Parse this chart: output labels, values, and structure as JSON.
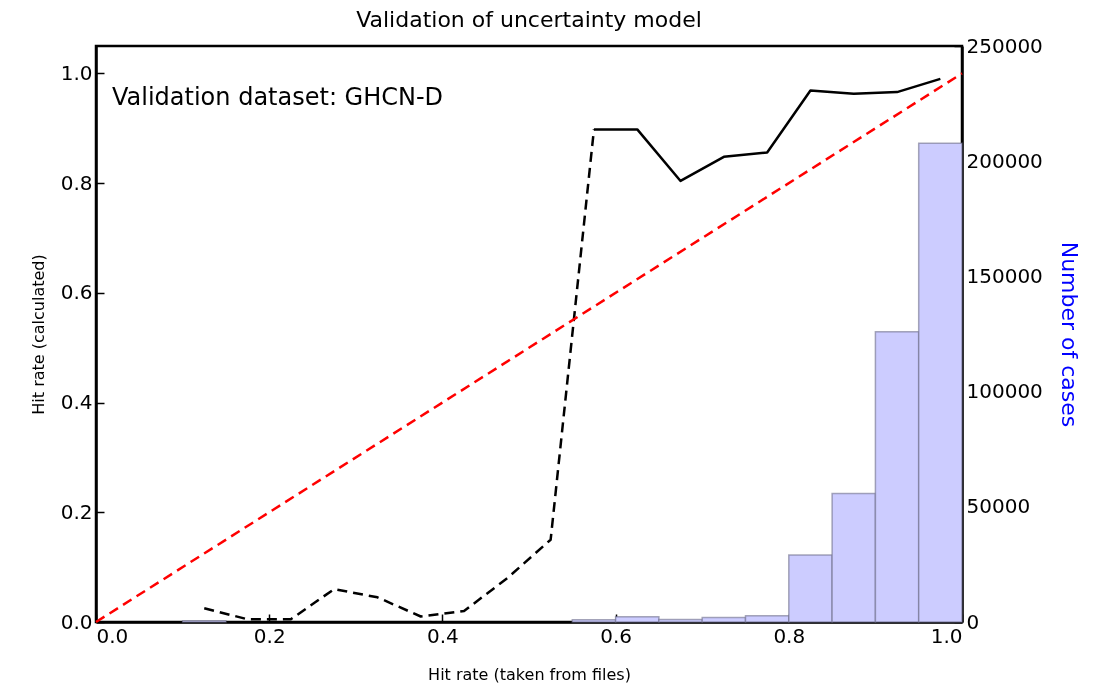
{
  "chart_data": {
    "type": "line",
    "title": "Validation of uncertainty model",
    "xlabel": "Hit rate (taken from files)",
    "ylabel": "Hit rate (calculated)",
    "y2label": "Number of cases",
    "annotations": [
      "Validation dataset: GHCN-D"
    ],
    "xlim": [
      0,
      1
    ],
    "ylim": [
      0,
      1.05
    ],
    "y2lim": [
      0,
      250000
    ],
    "xticks": [
      {
        "value": 0,
        "label": "0.0"
      },
      {
        "value": 0.2,
        "label": "0.2"
      },
      {
        "value": 0.4,
        "label": "0.4"
      },
      {
        "value": 0.6,
        "label": "0.6"
      },
      {
        "value": 0.8,
        "label": "0.8"
      },
      {
        "value": 1,
        "label": "1.0"
      }
    ],
    "yticks": [
      {
        "value": 0,
        "label": "0.0"
      },
      {
        "value": 0.2,
        "label": "0.2"
      },
      {
        "value": 0.4,
        "label": "0.4"
      },
      {
        "value": 0.6,
        "label": "0.6"
      },
      {
        "value": 0.8,
        "label": "0.8"
      },
      {
        "value": 1,
        "label": "1.0"
      }
    ],
    "y2ticks": [
      0,
      50000,
      100000,
      150000,
      200000,
      250000
    ],
    "series": [
      {
        "type": "histogram",
        "axis": "y2",
        "color": "#ccccff",
        "bins": [
          0.1,
          0.15,
          0.2,
          0.25,
          0.3,
          0.35,
          0.4,
          0.45,
          0.5,
          0.55,
          0.6,
          0.65,
          0.7,
          0.75,
          0.8,
          0.85,
          0.9,
          0.95,
          1.0
        ],
        "values": [
          500,
          0,
          0,
          0,
          0,
          0,
          0,
          0,
          0,
          1000,
          2300,
          1100,
          1900,
          2700,
          29100,
          55800,
          126000,
          207800
        ]
      },
      {
        "color": "#000000",
        "line_style": "dashed",
        "x": [
          0.125,
          0.175,
          0.225,
          0.275,
          0.325,
          0.375,
          0.425,
          0.475,
          0.525,
          0.575
        ],
        "values": [
          0.025,
          0.005,
          0.005,
          0.06,
          0.045,
          0.01,
          0.02,
          0.08,
          0.15,
          0.898
        ]
      },
      {
        "color": "#000000",
        "line_style": "solid",
        "x": [
          0.575,
          0.625,
          0.675,
          0.725,
          0.775,
          0.825,
          0.875,
          0.925,
          0.975
        ],
        "values": [
          0.898,
          0.898,
          0.804,
          0.848,
          0.856,
          0.969,
          0.963,
          0.966,
          0.99
        ]
      },
      {
        "color": "#ff0000",
        "line_style": "dashed",
        "x": [
          0,
          1
        ],
        "values": [
          0,
          1
        ]
      }
    ]
  }
}
